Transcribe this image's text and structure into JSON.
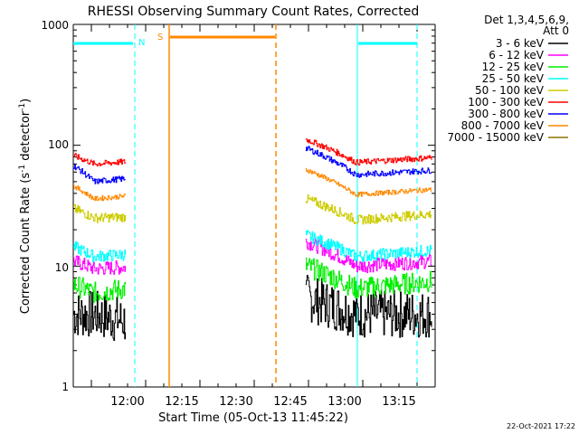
{
  "chart_data": {
    "type": "line",
    "title": "RHESSI Observing Summary Count Rates, Corrected",
    "xlabel": "Start Time (05-Oct-13 11:45:22)",
    "ylabel_main": "Corrected Count Rate (s",
    "ylabel_sup1": "-1",
    "ylabel_mid": " detector",
    "ylabel_sup2": "-1",
    "ylabel_end": ")",
    "yscale": "log",
    "ylim": [
      1,
      1000
    ],
    "xlim_minutes_after_start": [
      -5,
      95
    ],
    "y_ticks": [
      "1",
      "10",
      "100",
      "1000"
    ],
    "x_ticks": [
      {
        "label": "12:00",
        "minutes": 15
      },
      {
        "label": "12:15",
        "minutes": 30
      },
      {
        "label": "12:30",
        "minutes": 45
      },
      {
        "label": "12:45",
        "minutes": 60
      },
      {
        "label": "13:00",
        "minutes": 75
      },
      {
        "label": "13:15",
        "minutes": 90
      }
    ],
    "legend_header": [
      "Det 1,3,4,5,6,9,",
      "Att 0"
    ],
    "legend_placement": "right",
    "series": [
      {
        "name": "3 - 6 keV",
        "color": "#000000",
        "segA": [
          4.0,
          4.0,
          3.5
        ],
        "segB": [
          5.5,
          4.0,
          4.0
        ],
        "noise": 0.2
      },
      {
        "name": "6 - 12 keV",
        "color": "#ff00ff",
        "segA": [
          11.0,
          9.5,
          9.8
        ],
        "segB": [
          16.0,
          10.0,
          11.0
        ],
        "noise": 0.06
      },
      {
        "name": "12 - 25 keV",
        "color": "#00ee00",
        "segA": [
          7.0,
          6.0,
          6.5
        ],
        "segB": [
          10.0,
          6.5,
          7.5
        ],
        "noise": 0.09
      },
      {
        "name": "25 - 50 keV",
        "color": "#00ffff",
        "segA": [
          14.5,
          12.0,
          12.5
        ],
        "segB": [
          18.0,
          12.0,
          13.5
        ],
        "noise": 0.05
      },
      {
        "name": "50 - 100 keV",
        "color": "#cccc00",
        "segA": [
          30.0,
          25.0,
          25.5
        ],
        "segB": [
          36.0,
          24.0,
          27.0
        ],
        "noise": 0.04
      },
      {
        "name": "100 - 300 keV",
        "color": "#ff0000",
        "segA": [
          82.0,
          70.0,
          73.0
        ],
        "segB": [
          112.0,
          72.0,
          79.0
        ],
        "noise": 0.025
      },
      {
        "name": "300 - 800 keV",
        "color": "#0000ff",
        "segA": [
          68.0,
          50.0,
          53.0
        ],
        "segB": [
          95.0,
          57.0,
          62.0
        ],
        "noise": 0.025
      },
      {
        "name": "800 - 7000 keV",
        "color": "#ff8800",
        "segA": [
          46.0,
          36.0,
          38.0
        ],
        "segB": [
          63.0,
          39.0,
          43.0
        ],
        "noise": 0.02
      },
      {
        "name": "7000 - 15000 keV",
        "color": "#8b7500",
        "segA": [
          1.0,
          1.0,
          1.0
        ],
        "segB": [
          1.0,
          1.0,
          1.0
        ],
        "noise": 0
      }
    ],
    "annotations": {
      "flag_N": "N",
      "flag_S": "S",
      "timestamp": "22-Oct-2021 17:22"
    }
  }
}
